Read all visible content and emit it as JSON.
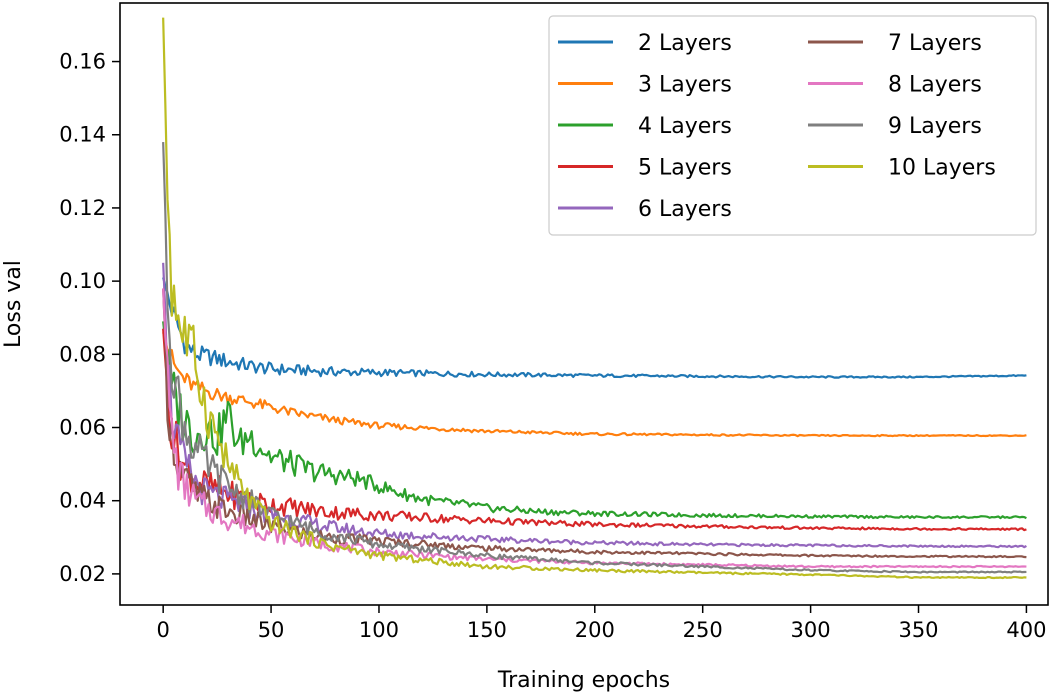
{
  "chart_data": {
    "type": "line",
    "title": "",
    "xlabel": "Training epochs",
    "ylabel": "Loss val",
    "xlim": [
      -20,
      410
    ],
    "ylim": [
      0.0115,
      0.176
    ],
    "xticks": [
      0,
      50,
      100,
      150,
      200,
      250,
      300,
      350,
      400
    ],
    "xtick_labels": [
      "0",
      "50",
      "100",
      "150",
      "200",
      "250",
      "300",
      "350",
      "400"
    ],
    "yticks": [
      0.02,
      0.04,
      0.06,
      0.08,
      0.1,
      0.12,
      0.14,
      0.16
    ],
    "ytick_labels": [
      "0.02",
      "0.04",
      "0.06",
      "0.08",
      "0.10",
      "0.12",
      "0.14",
      "0.16"
    ],
    "grid": false,
    "legend": {
      "position": "top-right",
      "columns": 2
    },
    "series": [
      {
        "name": "2 Layers",
        "color": "#1f77b4",
        "points": [
          [
            0,
            0.101
          ],
          [
            3,
            0.094
          ],
          [
            6,
            0.089
          ],
          [
            10,
            0.083
          ],
          [
            15,
            0.08
          ],
          [
            20,
            0.0795
          ],
          [
            30,
            0.078
          ],
          [
            40,
            0.0768
          ],
          [
            50,
            0.076
          ],
          [
            75,
            0.0753
          ],
          [
            100,
            0.075
          ],
          [
            150,
            0.0745
          ],
          [
            200,
            0.0742
          ],
          [
            250,
            0.074
          ],
          [
            300,
            0.0738
          ],
          [
            350,
            0.0738
          ],
          [
            400,
            0.0742
          ]
        ]
      },
      {
        "name": "3 Layers",
        "color": "#ff7f0e",
        "points": [
          [
            0,
            0.086
          ],
          [
            3,
            0.08
          ],
          [
            6,
            0.076
          ],
          [
            10,
            0.073
          ],
          [
            15,
            0.071
          ],
          [
            25,
            0.069
          ],
          [
            40,
            0.067
          ],
          [
            60,
            0.064
          ],
          [
            80,
            0.062
          ],
          [
            100,
            0.0605
          ],
          [
            150,
            0.059
          ],
          [
            200,
            0.0582
          ],
          [
            250,
            0.058
          ],
          [
            300,
            0.0578
          ],
          [
            350,
            0.0578
          ],
          [
            400,
            0.0578
          ]
        ]
      },
      {
        "name": "4 Layers",
        "color": "#2ca02c",
        "points": [
          [
            0,
            0.089
          ],
          [
            2,
            0.078
          ],
          [
            4,
            0.07
          ],
          [
            7,
            0.065
          ],
          [
            10,
            0.062
          ],
          [
            15,
            0.058
          ],
          [
            20,
            0.06
          ],
          [
            25,
            0.057
          ],
          [
            30,
            0.064
          ],
          [
            35,
            0.055
          ],
          [
            40,
            0.058
          ],
          [
            50,
            0.052
          ],
          [
            60,
            0.05
          ],
          [
            70,
            0.048
          ],
          [
            80,
            0.047
          ],
          [
            90,
            0.046
          ],
          [
            100,
            0.044
          ],
          [
            110,
            0.042
          ],
          [
            120,
            0.0405
          ],
          [
            130,
            0.0395
          ],
          [
            140,
            0.039
          ],
          [
            150,
            0.038
          ],
          [
            175,
            0.037
          ],
          [
            200,
            0.0365
          ],
          [
            250,
            0.036
          ],
          [
            300,
            0.0357
          ],
          [
            350,
            0.0355
          ],
          [
            400,
            0.0355
          ]
        ]
      },
      {
        "name": "5 Layers",
        "color": "#d62728",
        "points": [
          [
            0,
            0.087
          ],
          [
            2,
            0.07
          ],
          [
            4,
            0.06
          ],
          [
            7,
            0.053
          ],
          [
            10,
            0.049
          ],
          [
            15,
            0.046
          ],
          [
            20,
            0.044
          ],
          [
            30,
            0.042
          ],
          [
            40,
            0.04
          ],
          [
            50,
            0.039
          ],
          [
            75,
            0.037
          ],
          [
            100,
            0.036
          ],
          [
            150,
            0.0345
          ],
          [
            200,
            0.0335
          ],
          [
            250,
            0.033
          ],
          [
            300,
            0.0325
          ],
          [
            350,
            0.0323
          ],
          [
            400,
            0.0322
          ]
        ]
      },
      {
        "name": "6 Layers",
        "color": "#9467bd",
        "points": [
          [
            0,
            0.105
          ],
          [
            2,
            0.078
          ],
          [
            4,
            0.065
          ],
          [
            7,
            0.055
          ],
          [
            10,
            0.05
          ],
          [
            15,
            0.045
          ],
          [
            20,
            0.042
          ],
          [
            30,
            0.04
          ],
          [
            40,
            0.038
          ],
          [
            50,
            0.036
          ],
          [
            75,
            0.033
          ],
          [
            100,
            0.031
          ],
          [
            150,
            0.0295
          ],
          [
            200,
            0.0285
          ],
          [
            250,
            0.028
          ],
          [
            300,
            0.0278
          ],
          [
            350,
            0.0276
          ],
          [
            400,
            0.0275
          ]
        ]
      },
      {
        "name": "7 Layers",
        "color": "#8c564b",
        "points": [
          [
            0,
            0.098
          ],
          [
            2,
            0.07
          ],
          [
            4,
            0.058
          ],
          [
            7,
            0.05
          ],
          [
            10,
            0.046
          ],
          [
            15,
            0.042
          ],
          [
            20,
            0.04
          ],
          [
            30,
            0.037
          ],
          [
            40,
            0.035
          ],
          [
            50,
            0.033
          ],
          [
            75,
            0.03
          ],
          [
            100,
            0.029
          ],
          [
            150,
            0.027
          ],
          [
            200,
            0.026
          ],
          [
            250,
            0.0255
          ],
          [
            300,
            0.025
          ],
          [
            350,
            0.0248
          ],
          [
            400,
            0.0247
          ]
        ]
      },
      {
        "name": "8 Layers",
        "color": "#e377c2",
        "points": [
          [
            0,
            0.098
          ],
          [
            2,
            0.072
          ],
          [
            4,
            0.058
          ],
          [
            7,
            0.048
          ],
          [
            10,
            0.044
          ],
          [
            15,
            0.04
          ],
          [
            20,
            0.038
          ],
          [
            30,
            0.035
          ],
          [
            40,
            0.033
          ],
          [
            50,
            0.031
          ],
          [
            75,
            0.028
          ],
          [
            100,
            0.026
          ],
          [
            150,
            0.024
          ],
          [
            200,
            0.023
          ],
          [
            250,
            0.0225
          ],
          [
            300,
            0.022
          ],
          [
            350,
            0.022
          ],
          [
            400,
            0.022
          ]
        ]
      },
      {
        "name": "9 Layers",
        "color": "#7f7f7f",
        "points": [
          [
            0,
            0.138
          ],
          [
            2,
            0.1
          ],
          [
            4,
            0.08
          ],
          [
            7,
            0.068
          ],
          [
            10,
            0.06
          ],
          [
            15,
            0.054
          ],
          [
            20,
            0.05
          ],
          [
            30,
            0.044
          ],
          [
            40,
            0.04
          ],
          [
            50,
            0.036
          ],
          [
            75,
            0.031
          ],
          [
            100,
            0.028
          ],
          [
            150,
            0.025
          ],
          [
            200,
            0.023
          ],
          [
            250,
            0.022
          ],
          [
            300,
            0.021
          ],
          [
            350,
            0.0205
          ],
          [
            400,
            0.0205
          ]
        ]
      },
      {
        "name": "10 Layers",
        "color": "#bcbd22",
        "points": [
          [
            0,
            0.172
          ],
          [
            2,
            0.125
          ],
          [
            4,
            0.1
          ],
          [
            7,
            0.09
          ],
          [
            10,
            0.085
          ],
          [
            15,
            0.078
          ],
          [
            20,
            0.065
          ],
          [
            30,
            0.05
          ],
          [
            40,
            0.04
          ],
          [
            50,
            0.034
          ],
          [
            75,
            0.028
          ],
          [
            100,
            0.025
          ],
          [
            150,
            0.022
          ],
          [
            200,
            0.021
          ],
          [
            250,
            0.0203
          ],
          [
            300,
            0.0198
          ],
          [
            350,
            0.019
          ],
          [
            400,
            0.019
          ]
        ]
      }
    ]
  }
}
